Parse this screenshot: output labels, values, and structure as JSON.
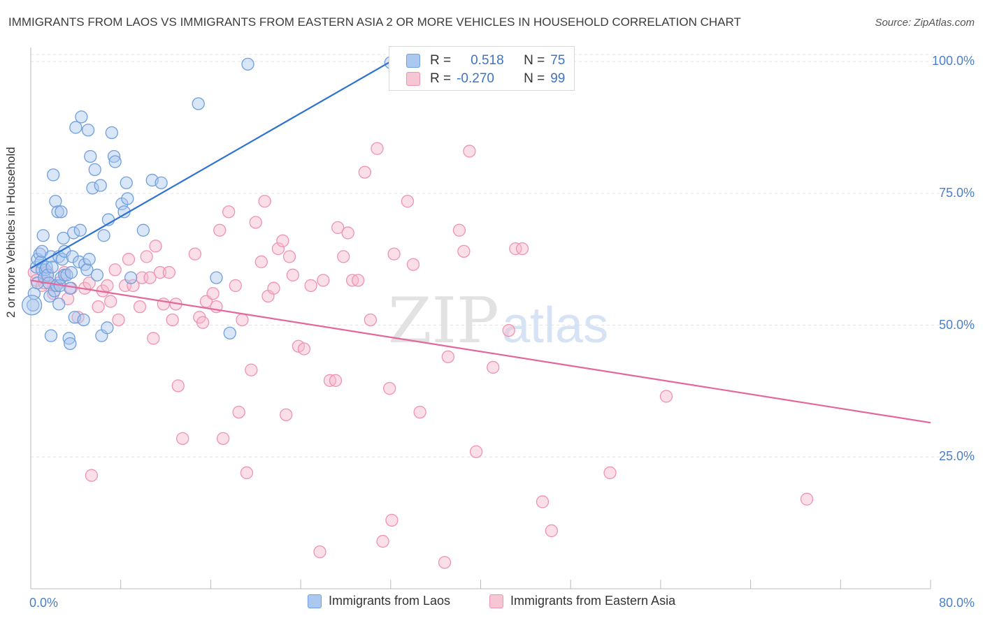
{
  "title": "IMMIGRANTS FROM LAOS VS IMMIGRANTS FROM EASTERN ASIA 2 OR MORE VEHICLES IN HOUSEHOLD CORRELATION CHART",
  "source": "Source: ZipAtlas.com",
  "watermark": {
    "zip": "ZIP",
    "atlas": "atlas"
  },
  "stats": [
    {
      "r_label": "R =",
      "r_value": "0.518",
      "n_label": "N =",
      "n_value": "75"
    },
    {
      "r_label": "R =",
      "r_value": "-0.270",
      "n_label": "N =",
      "n_value": "99"
    }
  ],
  "colors": {
    "laos_fill": "#aac8f0",
    "laos_stroke": "#6f9fdc",
    "laos_line": "#2e72d2",
    "ea_fill": "#f6b8cb",
    "ea_stroke": "#ee93b0",
    "ea_line": "#e4679a",
    "tick_text": "#4a7fc8",
    "grid": "#e4e4e4"
  },
  "chart_data": {
    "type": "scatter",
    "title": "IMMIGRANTS FROM LAOS VS IMMIGRANTS FROM EASTERN ASIA 2 OR MORE VEHICLES IN HOUSEHOLD CORRELATION CHART",
    "xlabel": "",
    "ylabel": "2 or more Vehicles in Household",
    "xlim": [
      0,
      80
    ],
    "ylim": [
      0,
      102
    ],
    "x_tick_labels": [
      "0.0%",
      "80.0%"
    ],
    "y_tick_labels": [
      {
        "value": 25,
        "label": "25.0%"
      },
      {
        "value": 50,
        "label": "50.0%"
      },
      {
        "value": 75,
        "label": "75.0%"
      },
      {
        "value": 100,
        "label": "100.0%"
      }
    ],
    "grid": true,
    "legend_position": "bottom",
    "series": [
      {
        "name": "Immigrants from Laos",
        "r": 0.518,
        "n": 75,
        "trend": [
          [
            0,
            60.8
          ],
          [
            32,
            100.0
          ]
        ],
        "points": [
          [
            0.2,
            53.8
          ],
          [
            0.3,
            56.0
          ],
          [
            0.5,
            61.0
          ],
          [
            0.6,
            62.5
          ],
          [
            0.6,
            58.0
          ],
          [
            0.8,
            63.5
          ],
          [
            0.9,
            62.0
          ],
          [
            1.0,
            64.0
          ],
          [
            1.0,
            60.5
          ],
          [
            1.1,
            67.0
          ],
          [
            1.2,
            59.0
          ],
          [
            1.3,
            60.5
          ],
          [
            1.4,
            61.0
          ],
          [
            1.5,
            59.5
          ],
          [
            1.6,
            58.0
          ],
          [
            1.7,
            55.5
          ],
          [
            1.8,
            48.0
          ],
          [
            1.8,
            63.0
          ],
          [
            1.9,
            61.0
          ],
          [
            2.0,
            78.5
          ],
          [
            2.1,
            56.5
          ],
          [
            2.2,
            73.5
          ],
          [
            2.3,
            57.5
          ],
          [
            2.4,
            71.5
          ],
          [
            2.5,
            63.0
          ],
          [
            2.5,
            54.0
          ],
          [
            2.6,
            57.5
          ],
          [
            2.7,
            59.0
          ],
          [
            2.8,
            62.5
          ],
          [
            2.9,
            66.5
          ],
          [
            3.0,
            59.5
          ],
          [
            2.7,
            71.5
          ],
          [
            3.0,
            64.0
          ],
          [
            3.2,
            59.5
          ],
          [
            3.4,
            47.5
          ],
          [
            3.5,
            57.0
          ],
          [
            3.6,
            60.0
          ],
          [
            3.8,
            67.5
          ],
          [
            3.7,
            63.0
          ],
          [
            3.5,
            46.5
          ],
          [
            3.9,
            51.5
          ],
          [
            4.0,
            87.5
          ],
          [
            4.3,
            62.0
          ],
          [
            4.4,
            68.0
          ],
          [
            4.5,
            89.5
          ],
          [
            4.7,
            51.0
          ],
          [
            4.8,
            61.5
          ],
          [
            5.0,
            60.5
          ],
          [
            5.1,
            87.0
          ],
          [
            5.2,
            62.5
          ],
          [
            5.3,
            82.0
          ],
          [
            5.5,
            76.0
          ],
          [
            5.7,
            79.5
          ],
          [
            5.9,
            59.5
          ],
          [
            6.2,
            76.5
          ],
          [
            6.3,
            48.0
          ],
          [
            6.5,
            67.0
          ],
          [
            6.8,
            49.5
          ],
          [
            6.9,
            70.0
          ],
          [
            7.2,
            86.5
          ],
          [
            7.4,
            82.0
          ],
          [
            7.5,
            81.0
          ],
          [
            8.1,
            73.0
          ],
          [
            8.3,
            71.5
          ],
          [
            8.5,
            77.0
          ],
          [
            8.6,
            74.0
          ],
          [
            8.9,
            59.0
          ],
          [
            10.0,
            68.0
          ],
          [
            10.8,
            77.5
          ],
          [
            11.6,
            77.0
          ],
          [
            14.9,
            92.0
          ],
          [
            16.5,
            59.0
          ],
          [
            17.7,
            48.5
          ],
          [
            19.3,
            99.5
          ],
          [
            32.0,
            99.8
          ]
        ]
      },
      {
        "name": "Immigrants from Eastern Asia",
        "r": -0.27,
        "n": 99,
        "trend": [
          [
            0,
            58.5
          ],
          [
            80,
            31.5
          ]
        ],
        "points": [
          [
            0.3,
            60.0
          ],
          [
            0.5,
            58.5
          ],
          [
            1.0,
            57.5
          ],
          [
            1.2,
            58.0
          ],
          [
            1.5,
            60.0
          ],
          [
            2.0,
            56.0
          ],
          [
            2.2,
            57.5
          ],
          [
            2.5,
            58.0
          ],
          [
            3.0,
            60.0
          ],
          [
            3.3,
            55.0
          ],
          [
            3.6,
            57.0
          ],
          [
            4.2,
            51.5
          ],
          [
            4.8,
            57.0
          ],
          [
            5.2,
            58.0
          ],
          [
            5.4,
            21.5
          ],
          [
            6.0,
            53.5
          ],
          [
            6.4,
            56.5
          ],
          [
            6.8,
            57.5
          ],
          [
            7.1,
            54.5
          ],
          [
            7.5,
            60.5
          ],
          [
            7.8,
            51.0
          ],
          [
            8.4,
            57.5
          ],
          [
            8.7,
            62.5
          ],
          [
            9.1,
            57.5
          ],
          [
            9.7,
            53.5
          ],
          [
            9.9,
            59.0
          ],
          [
            10.3,
            63.0
          ],
          [
            10.6,
            59.0
          ],
          [
            10.9,
            47.5
          ],
          [
            11.1,
            65.0
          ],
          [
            11.5,
            60.0
          ],
          [
            11.8,
            54.0
          ],
          [
            12.3,
            60.0
          ],
          [
            12.6,
            51.0
          ],
          [
            12.9,
            54.0
          ],
          [
            13.1,
            38.5
          ],
          [
            13.5,
            28.5
          ],
          [
            14.6,
            63.5
          ],
          [
            15.0,
            51.5
          ],
          [
            15.3,
            50.5
          ],
          [
            15.6,
            54.5
          ],
          [
            16.2,
            56.0
          ],
          [
            16.5,
            53.5
          ],
          [
            16.8,
            68.0
          ],
          [
            17.1,
            28.5
          ],
          [
            17.6,
            71.5
          ],
          [
            18.2,
            57.5
          ],
          [
            18.5,
            33.5
          ],
          [
            18.8,
            51.0
          ],
          [
            19.2,
            22.0
          ],
          [
            19.6,
            41.5
          ],
          [
            20.0,
            69.5
          ],
          [
            20.5,
            62.0
          ],
          [
            20.8,
            73.5
          ],
          [
            21.1,
            55.5
          ],
          [
            21.6,
            57.0
          ],
          [
            22.0,
            64.5
          ],
          [
            22.4,
            66.0
          ],
          [
            22.7,
            33.0
          ],
          [
            23.0,
            63.0
          ],
          [
            23.3,
            59.5
          ],
          [
            23.8,
            46.0
          ],
          [
            24.3,
            45.5
          ],
          [
            24.9,
            57.5
          ],
          [
            25.7,
            7.0
          ],
          [
            26.0,
            58.5
          ],
          [
            26.6,
            39.5
          ],
          [
            27.1,
            39.5
          ],
          [
            27.3,
            68.5
          ],
          [
            27.8,
            63.0
          ],
          [
            28.2,
            67.5
          ],
          [
            28.6,
            58.5
          ],
          [
            29.1,
            58.5
          ],
          [
            29.7,
            79.0
          ],
          [
            30.2,
            51.0
          ],
          [
            30.8,
            83.5
          ],
          [
            31.3,
            9.0
          ],
          [
            31.9,
            38.0
          ],
          [
            32.1,
            13.0
          ],
          [
            32.3,
            63.5
          ],
          [
            33.5,
            73.5
          ],
          [
            34.0,
            61.5
          ],
          [
            34.6,
            33.5
          ],
          [
            36.8,
            5.0
          ],
          [
            37.1,
            44.0
          ],
          [
            38.1,
            68.0
          ],
          [
            38.5,
            64.0
          ],
          [
            39.0,
            83.0
          ],
          [
            39.6,
            26.0
          ],
          [
            41.1,
            42.0
          ],
          [
            42.5,
            49.0
          ],
          [
            43.1,
            64.5
          ],
          [
            43.7,
            64.5
          ],
          [
            45.5,
            16.5
          ],
          [
            46.3,
            11.0
          ],
          [
            51.5,
            22.0
          ],
          [
            56.5,
            36.5
          ],
          [
            69.0,
            17.0
          ],
          [
            42.2,
            100.0
          ]
        ]
      }
    ]
  }
}
